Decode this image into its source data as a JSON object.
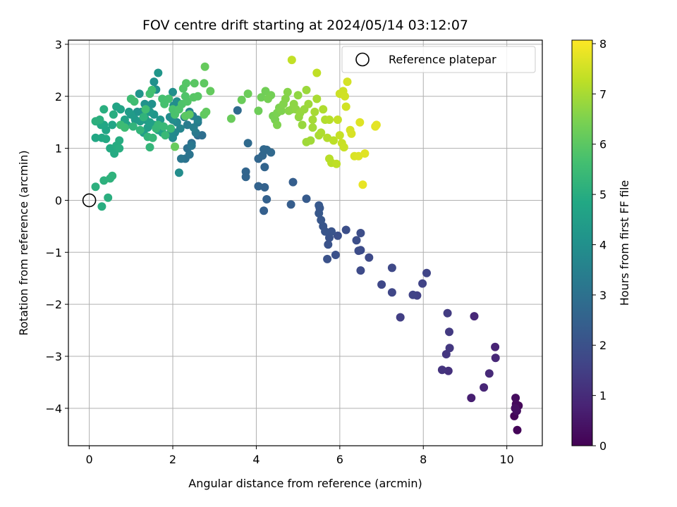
{
  "chart_data": {
    "type": "scatter",
    "title": "FOV centre drift starting at 2024/05/14 03:12:07",
    "xlabel": "Angular distance from reference (arcmin)",
    "ylabel": "Rotation from reference (arcmin)",
    "xlim": [
      -0.5,
      10.85
    ],
    "ylim": [
      -4.72,
      3.08
    ],
    "xticks": [
      0,
      2,
      4,
      6,
      8,
      10
    ],
    "yticks": [
      3,
      2,
      1,
      0,
      -1,
      -2,
      -3,
      -4
    ],
    "grid": true,
    "legend": {
      "label": "Reference platepar",
      "position": "top-right",
      "marker": "open circle"
    },
    "reference_point": {
      "x": 0,
      "y": 0
    },
    "colorbar": {
      "label": "Hours from first FF file",
      "colormap": "viridis",
      "range": [
        0,
        8.07
      ],
      "ticks": [
        0,
        1,
        2,
        3,
        4,
        5,
        6,
        7,
        8
      ]
    },
    "points": [
      [
        10.18,
        -4.15,
        0.1
      ],
      [
        10.25,
        -4.42,
        0.1
      ],
      [
        10.28,
        -3.95,
        0.15
      ],
      [
        10.22,
        -3.92,
        0.2
      ],
      [
        10.21,
        -3.8,
        0.25
      ],
      [
        10.24,
        -4.05,
        0.3
      ],
      [
        10.2,
        -4.0,
        0.35
      ],
      [
        9.15,
        -3.8,
        0.7
      ],
      [
        9.45,
        -3.6,
        0.85
      ],
      [
        9.58,
        -3.33,
        0.95
      ],
      [
        9.73,
        -3.03,
        0.9
      ],
      [
        9.72,
        -2.82,
        0.8
      ],
      [
        9.22,
        -2.23,
        0.9
      ],
      [
        8.6,
        -3.28,
        1.1
      ],
      [
        8.45,
        -3.26,
        1.2
      ],
      [
        8.55,
        -2.96,
        1.25
      ],
      [
        8.63,
        -2.84,
        1.3
      ],
      [
        8.62,
        -2.53,
        1.35
      ],
      [
        8.58,
        -2.17,
        1.4
      ],
      [
        7.45,
        -2.25,
        1.5
      ],
      [
        7.85,
        -1.83,
        1.55
      ],
      [
        7.75,
        -1.82,
        1.6
      ],
      [
        7.98,
        -1.6,
        1.62
      ],
      [
        8.08,
        -1.4,
        1.65
      ],
      [
        7.25,
        -1.77,
        1.7
      ],
      [
        7.0,
        -1.62,
        1.72
      ],
      [
        7.25,
        -1.3,
        1.75
      ],
      [
        6.7,
        -1.1,
        1.8
      ],
      [
        6.5,
        -1.35,
        1.82
      ],
      [
        6.5,
        -0.96,
        1.85
      ],
      [
        6.45,
        -0.97,
        1.87
      ],
      [
        6.5,
        -0.63,
        1.9
      ],
      [
        6.4,
        -0.77,
        1.92
      ],
      [
        6.15,
        -0.57,
        1.95
      ],
      [
        5.95,
        -0.68,
        1.97
      ],
      [
        5.9,
        -1.05,
        2.0
      ],
      [
        5.7,
        -1.13,
        2.02
      ],
      [
        5.72,
        -0.85,
        2.05
      ],
      [
        5.75,
        -0.72,
        2.07
      ],
      [
        5.8,
        -0.6,
        2.1
      ],
      [
        5.65,
        -0.6,
        2.12
      ],
      [
        5.6,
        -0.5,
        2.15
      ],
      [
        5.55,
        -0.38,
        2.17
      ],
      [
        5.5,
        -0.25,
        2.2
      ],
      [
        5.52,
        -0.15,
        2.22
      ],
      [
        5.5,
        -0.1,
        2.25
      ],
      [
        5.2,
        0.03,
        2.3
      ],
      [
        4.83,
        -0.08,
        2.35
      ],
      [
        4.88,
        0.35,
        2.4
      ],
      [
        4.18,
        -0.2,
        2.45
      ],
      [
        4.25,
        0.02,
        2.5
      ],
      [
        4.2,
        0.25,
        2.52
      ],
      [
        4.05,
        0.27,
        2.55
      ],
      [
        4.2,
        0.64,
        2.58
      ],
      [
        3.75,
        0.45,
        2.6
      ],
      [
        3.75,
        0.55,
        2.62
      ],
      [
        4.05,
        0.8,
        2.65
      ],
      [
        4.15,
        0.86,
        2.67
      ],
      [
        4.18,
        0.98,
        2.7
      ],
      [
        4.25,
        0.97,
        2.72
      ],
      [
        4.35,
        0.92,
        2.75
      ],
      [
        3.8,
        1.1,
        2.78
      ],
      [
        3.55,
        1.73,
        2.8
      ],
      [
        2.6,
        1.25,
        2.85
      ],
      [
        2.7,
        1.25,
        2.9
      ],
      [
        2.45,
        1.1,
        2.95
      ],
      [
        2.35,
        1.0,
        3.0
      ],
      [
        2.3,
        0.8,
        3.05
      ],
      [
        2.4,
        0.88,
        3.1
      ],
      [
        2.2,
        0.8,
        3.15
      ],
      [
        2.45,
        1.05,
        3.2
      ],
      [
        2.55,
        1.3,
        3.25
      ],
      [
        2.6,
        1.5,
        3.3
      ],
      [
        2.35,
        1.45,
        3.35
      ],
      [
        2.28,
        1.6,
        3.4
      ],
      [
        2.5,
        1.4,
        3.45
      ],
      [
        2.48,
        1.62,
        3.5
      ],
      [
        2.6,
        1.55,
        3.55
      ],
      [
        2.4,
        1.7,
        3.6
      ],
      [
        2.18,
        1.38,
        3.65
      ],
      [
        2.05,
        1.3,
        3.7
      ],
      [
        2.1,
        1.5,
        3.75
      ],
      [
        2.0,
        1.2,
        3.8
      ],
      [
        1.95,
        1.3,
        3.85
      ],
      [
        1.93,
        1.6,
        3.88
      ],
      [
        2.0,
        1.55,
        3.9
      ],
      [
        2.02,
        1.82,
        3.92
      ],
      [
        2.1,
        1.9,
        3.95
      ],
      [
        2.0,
        2.08,
        3.97
      ],
      [
        1.6,
        2.13,
        4.0
      ],
      [
        1.55,
        2.28,
        4.02
      ],
      [
        1.5,
        1.85,
        4.05
      ],
      [
        1.33,
        1.85,
        4.08
      ],
      [
        1.25,
        1.7,
        4.1
      ],
      [
        1.15,
        1.7,
        4.12
      ],
      [
        1.2,
        2.05,
        4.15
      ],
      [
        2.15,
        0.53,
        3.9
      ],
      [
        1.65,
        2.45,
        4.2
      ],
      [
        1.55,
        1.65,
        4.22
      ],
      [
        1.7,
        1.55,
        4.25
      ],
      [
        1.45,
        1.7,
        4.27
      ],
      [
        1.35,
        1.55,
        4.3
      ],
      [
        1.1,
        1.55,
        4.35
      ],
      [
        1.0,
        1.65,
        4.38
      ],
      [
        0.95,
        1.7,
        4.4
      ],
      [
        1.22,
        1.52,
        4.42
      ],
      [
        1.4,
        1.4,
        4.45
      ],
      [
        1.3,
        1.3,
        4.48
      ],
      [
        1.32,
        1.6,
        4.5
      ],
      [
        1.45,
        1.5,
        4.52
      ],
      [
        1.55,
        1.45,
        4.55
      ],
      [
        1.65,
        1.35,
        4.58
      ],
      [
        1.75,
        1.3,
        4.6
      ],
      [
        0.9,
        1.45,
        4.62
      ],
      [
        0.85,
        1.55,
        4.65
      ],
      [
        0.75,
        1.75,
        4.67
      ],
      [
        0.65,
        1.8,
        4.7
      ],
      [
        0.55,
        1.45,
        4.72
      ],
      [
        0.4,
        1.35,
        4.75
      ],
      [
        0.35,
        1.45,
        4.78
      ],
      [
        0.28,
        1.45,
        4.8
      ],
      [
        0.15,
        1.2,
        4.82
      ],
      [
        0.3,
        1.2,
        4.85
      ],
      [
        0.4,
        1.18,
        4.87
      ],
      [
        0.5,
        1.0,
        4.9
      ],
      [
        0.6,
        0.9,
        4.92
      ],
      [
        0.65,
        1.05,
        4.95
      ],
      [
        0.72,
        1.15,
        4.97
      ],
      [
        0.72,
        1.0,
        5.0
      ],
      [
        0.58,
        1.65,
        5.02
      ],
      [
        0.35,
        1.75,
        5.05
      ],
      [
        0.15,
        1.52,
        5.08
      ],
      [
        0.25,
        1.55,
        5.1
      ],
      [
        0.3,
        -0.12,
        5.0
      ],
      [
        0.45,
        0.05,
        5.05
      ],
      [
        0.15,
        0.26,
        5.1
      ],
      [
        0.35,
        0.38,
        5.12
      ],
      [
        0.5,
        0.42,
        5.15
      ],
      [
        0.55,
        0.47,
        5.18
      ],
      [
        1.3,
        1.6,
        5.2
      ],
      [
        1.05,
        1.42,
        5.22
      ],
      [
        1.22,
        1.35,
        5.25
      ],
      [
        1.4,
        1.22,
        5.28
      ],
      [
        1.45,
        1.02,
        5.3
      ],
      [
        1.52,
        1.2,
        5.32
      ],
      [
        1.6,
        1.38,
        5.35
      ],
      [
        1.65,
        1.45,
        5.37
      ],
      [
        1.78,
        1.42,
        5.4
      ],
      [
        1.82,
        1.25,
        5.42
      ],
      [
        1.95,
        1.38,
        5.45
      ],
      [
        0.75,
        1.45,
        5.48
      ],
      [
        0.85,
        1.4,
        5.5
      ],
      [
        1.0,
        1.95,
        5.52
      ],
      [
        1.08,
        1.9,
        5.55
      ],
      [
        1.35,
        1.75,
        5.58
      ],
      [
        1.45,
        2.05,
        5.6
      ],
      [
        1.5,
        2.12,
        5.62
      ],
      [
        1.75,
        1.95,
        5.65
      ],
      [
        1.8,
        1.85,
        5.68
      ],
      [
        1.9,
        1.95,
        5.7
      ],
      [
        2.0,
        1.75,
        5.72
      ],
      [
        2.05,
        1.65,
        5.75
      ],
      [
        2.15,
        1.75,
        5.78
      ],
      [
        2.22,
        1.85,
        5.8
      ],
      [
        2.3,
        2.0,
        5.82
      ],
      [
        2.35,
        1.9,
        5.85
      ],
      [
        2.25,
        2.15,
        5.88
      ],
      [
        2.32,
        2.25,
        5.9
      ],
      [
        2.5,
        1.98,
        5.93
      ],
      [
        2.6,
        2.0,
        5.95
      ],
      [
        2.52,
        2.25,
        5.98
      ],
      [
        2.3,
        1.62,
        6.0
      ],
      [
        2.4,
        1.65,
        6.02
      ],
      [
        2.75,
        2.25,
        6.05
      ],
      [
        2.75,
        1.65,
        6.08
      ],
      [
        2.8,
        1.7,
        6.1
      ],
      [
        2.9,
        2.1,
        6.12
      ],
      [
        2.77,
        2.57,
        6.15
      ],
      [
        2.05,
        1.03,
        6.18
      ],
      [
        3.4,
        1.57,
        6.2
      ],
      [
        3.65,
        1.93,
        6.22
      ],
      [
        3.8,
        2.05,
        6.25
      ],
      [
        4.05,
        1.72,
        6.28
      ],
      [
        4.12,
        1.98,
        6.3
      ],
      [
        4.22,
        2.1,
        6.32
      ],
      [
        4.35,
        2.02,
        6.35
      ],
      [
        4.28,
        1.95,
        6.38
      ],
      [
        4.4,
        1.62,
        6.4
      ],
      [
        4.45,
        1.55,
        6.42
      ],
      [
        4.5,
        1.68,
        6.45
      ],
      [
        4.55,
        1.78,
        6.48
      ],
      [
        4.5,
        1.45,
        6.5
      ],
      [
        4.6,
        1.72,
        6.52
      ],
      [
        4.65,
        1.85,
        6.55
      ],
      [
        4.7,
        1.95,
        6.58
      ],
      [
        4.75,
        2.08,
        6.6
      ],
      [
        4.78,
        1.72,
        6.62
      ],
      [
        4.85,
        1.75,
        6.65
      ],
      [
        4.9,
        1.85,
        6.68
      ],
      [
        4.95,
        1.75,
        6.7
      ],
      [
        5.0,
        2.02,
        6.72
      ],
      [
        5.02,
        1.6,
        6.75
      ],
      [
        5.05,
        1.68,
        6.78
      ],
      [
        5.1,
        1.45,
        6.8
      ],
      [
        5.15,
        1.75,
        6.82
      ],
      [
        5.2,
        2.12,
        6.85
      ],
      [
        5.25,
        1.85,
        6.88
      ],
      [
        5.2,
        1.12,
        6.9
      ],
      [
        5.3,
        1.15,
        6.92
      ],
      [
        5.35,
        1.4,
        6.95
      ],
      [
        5.35,
        1.55,
        6.97
      ],
      [
        5.4,
        1.7,
        7.0
      ],
      [
        5.45,
        1.95,
        7.02
      ],
      [
        5.5,
        1.25,
        7.05
      ],
      [
        5.55,
        1.3,
        7.08
      ],
      [
        5.6,
        1.75,
        7.1
      ],
      [
        5.65,
        1.55,
        7.12
      ],
      [
        5.7,
        1.2,
        7.15
      ],
      [
        5.75,
        1.55,
        7.18
      ],
      [
        5.75,
        0.8,
        7.2
      ],
      [
        5.8,
        0.72,
        7.22
      ],
      [
        5.85,
        1.15,
        7.25
      ],
      [
        5.92,
        0.7,
        7.28
      ],
      [
        5.45,
        2.45,
        7.3
      ],
      [
        4.85,
        2.7,
        7.32
      ],
      [
        5.95,
        1.55,
        7.35
      ],
      [
        6.0,
        1.25,
        7.38
      ],
      [
        6.05,
        1.1,
        7.4
      ],
      [
        6.1,
        1.02,
        7.42
      ],
      [
        6.0,
        2.05,
        7.45
      ],
      [
        6.08,
        2.1,
        7.48
      ],
      [
        6.12,
        2.0,
        7.5
      ],
      [
        6.15,
        1.8,
        7.52
      ],
      [
        6.18,
        2.28,
        7.55
      ],
      [
        6.25,
        1.35,
        7.58
      ],
      [
        6.28,
        1.28,
        7.6
      ],
      [
        6.35,
        0.85,
        7.62
      ],
      [
        6.45,
        0.85,
        7.65
      ],
      [
        6.48,
        1.5,
        7.68
      ],
      [
        6.6,
        0.9,
        7.7
      ],
      [
        6.85,
        1.42,
        7.72
      ],
      [
        6.88,
        1.45,
        7.75
      ],
      [
        6.55,
        0.3,
        7.8
      ]
    ]
  }
}
